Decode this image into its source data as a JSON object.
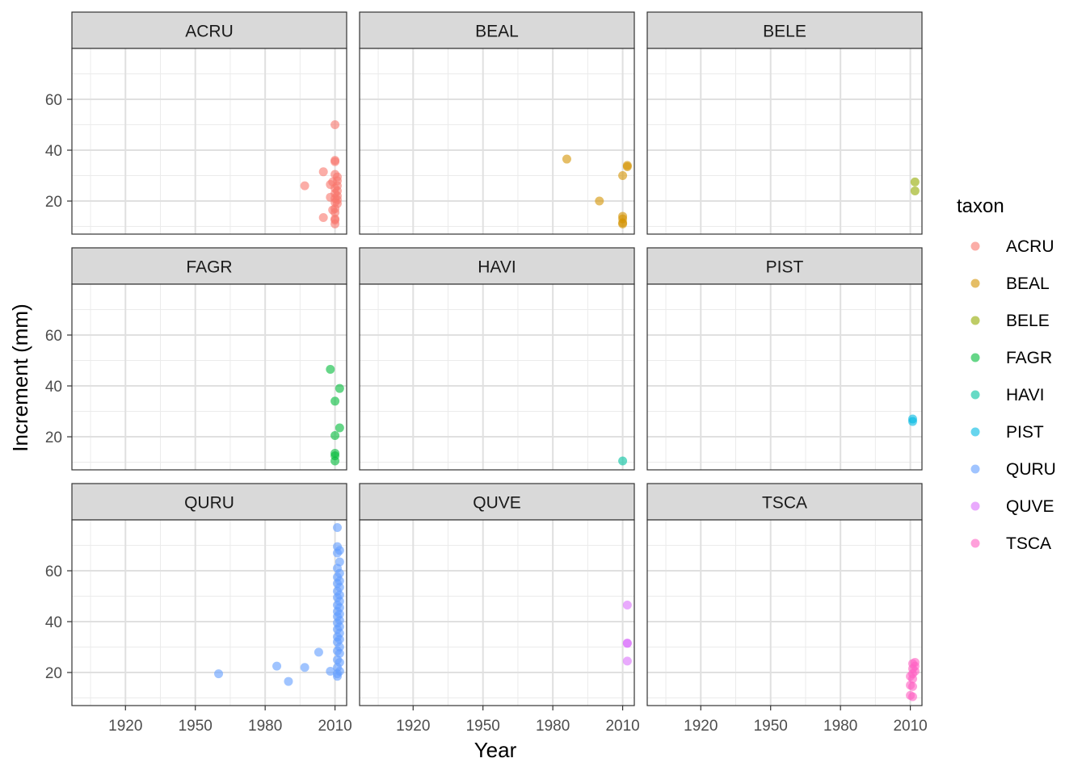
{
  "chart_data": {
    "type": "scatter",
    "facet_by": "taxon",
    "xlabel": "Year",
    "ylabel": "Increment (mm)",
    "xlim": [
      1897,
      2015
    ],
    "ylim": [
      7,
      80
    ],
    "x_ticks": [
      1920,
      1950,
      1980,
      2010
    ],
    "y_ticks": [
      20,
      40,
      60
    ],
    "grid": true,
    "legend": {
      "title": "taxon",
      "placement": "right",
      "items": [
        "ACRU",
        "BEAL",
        "BELE",
        "FAGR",
        "HAVI",
        "PIST",
        "QURU",
        "QUVE",
        "TSCA"
      ]
    },
    "colors": {
      "ACRU": "#F8766D",
      "BEAL": "#D39200",
      "BELE": "#93AA00",
      "FAGR": "#00BA38",
      "HAVI": "#00C19F",
      "PIST": "#00B9E3",
      "QURU": "#619CFF",
      "QUVE": "#DB72FB",
      "TSCA": "#FF61C3"
    },
    "panels": [
      {
        "title": "ACRU",
        "points": [
          [
            2010,
            50
          ],
          [
            2010,
            36
          ],
          [
            2010,
            35.5
          ],
          [
            2005,
            31.5
          ],
          [
            2010,
            30.5
          ],
          [
            2011,
            29.5
          ],
          [
            2009,
            27.5
          ],
          [
            2011,
            28
          ],
          [
            1997,
            26
          ],
          [
            2008,
            26.5
          ],
          [
            2011,
            26
          ],
          [
            2010,
            25
          ],
          [
            2011,
            24
          ],
          [
            2010,
            23
          ],
          [
            2011,
            22
          ],
          [
            2008,
            21.5
          ],
          [
            2010,
            21
          ],
          [
            2011,
            20.5
          ],
          [
            2010,
            19.5
          ],
          [
            2011,
            19
          ],
          [
            2010,
            17
          ],
          [
            2009,
            16.5
          ],
          [
            2010,
            15.5
          ],
          [
            2005,
            13.5
          ],
          [
            2010,
            13
          ],
          [
            2010,
            12.5
          ],
          [
            2010,
            11
          ]
        ]
      },
      {
        "title": "BEAL",
        "points": [
          [
            1986,
            36.5
          ],
          [
            2012,
            34
          ],
          [
            2012,
            33.5
          ],
          [
            2010,
            30
          ],
          [
            2000,
            20
          ],
          [
            2010,
            14
          ],
          [
            2010,
            13
          ],
          [
            2010,
            11.5
          ],
          [
            2010,
            11
          ]
        ]
      },
      {
        "title": "BELE",
        "points": [
          [
            2012,
            27.5
          ],
          [
            2012,
            24
          ]
        ]
      },
      {
        "title": "FAGR",
        "points": [
          [
            2008,
            46.5
          ],
          [
            2012,
            39
          ],
          [
            2010,
            34
          ],
          [
            2012,
            23.5
          ],
          [
            2010,
            20.5
          ],
          [
            2010,
            13.5
          ],
          [
            2010,
            12.5
          ],
          [
            2010,
            10.5
          ]
        ]
      },
      {
        "title": "HAVI",
        "points": [
          [
            2010,
            10.5
          ]
        ]
      },
      {
        "title": "PIST",
        "points": [
          [
            2011,
            27
          ],
          [
            2011,
            26
          ]
        ]
      },
      {
        "title": "QURU",
        "points": [
          [
            2011,
            77
          ],
          [
            2011,
            69.5
          ],
          [
            2012,
            68
          ],
          [
            2011,
            67
          ],
          [
            2012,
            63.5
          ],
          [
            2011,
            61
          ],
          [
            2012,
            59
          ],
          [
            2011,
            57.5
          ],
          [
            2012,
            56
          ],
          [
            2011,
            55
          ],
          [
            2012,
            53.5
          ],
          [
            2011,
            52
          ],
          [
            2012,
            50.5
          ],
          [
            2011,
            49.5
          ],
          [
            2012,
            48
          ],
          [
            2011,
            46.5
          ],
          [
            2012,
            45.5
          ],
          [
            2011,
            44
          ],
          [
            2012,
            43
          ],
          [
            2011,
            42
          ],
          [
            2012,
            40.5
          ],
          [
            2011,
            39.5
          ],
          [
            2012,
            38
          ],
          [
            2011,
            37
          ],
          [
            2012,
            35.5
          ],
          [
            2011,
            34
          ],
          [
            2012,
            33
          ],
          [
            2011,
            32
          ],
          [
            2012,
            30
          ],
          [
            2011,
            28.5
          ],
          [
            2012,
            27.5
          ],
          [
            2011,
            25
          ],
          [
            2012,
            24
          ],
          [
            2011,
            22
          ],
          [
            2012,
            20.5
          ],
          [
            2011,
            19.5
          ],
          [
            2011,
            18.5
          ],
          [
            2003,
            28
          ],
          [
            1985,
            22.5
          ],
          [
            1997,
            22
          ],
          [
            2008,
            20.5
          ],
          [
            1960,
            19.5
          ],
          [
            1990,
            16.5
          ]
        ]
      },
      {
        "title": "QUVE",
        "points": [
          [
            2012,
            46.5
          ],
          [
            2012,
            31.5
          ],
          [
            2012,
            31.5
          ],
          [
            2012,
            24.5
          ]
        ]
      },
      {
        "title": "TSCA",
        "points": [
          [
            2012,
            24
          ],
          [
            2011,
            23.5
          ],
          [
            2012,
            22.5
          ],
          [
            2011,
            21.5
          ],
          [
            2012,
            20.5
          ],
          [
            2011,
            19.5
          ],
          [
            2010,
            18.5
          ],
          [
            2011,
            17.5
          ],
          [
            2010,
            15
          ],
          [
            2011,
            14.5
          ],
          [
            2010,
            11
          ],
          [
            2011,
            10.5
          ]
        ]
      }
    ]
  }
}
